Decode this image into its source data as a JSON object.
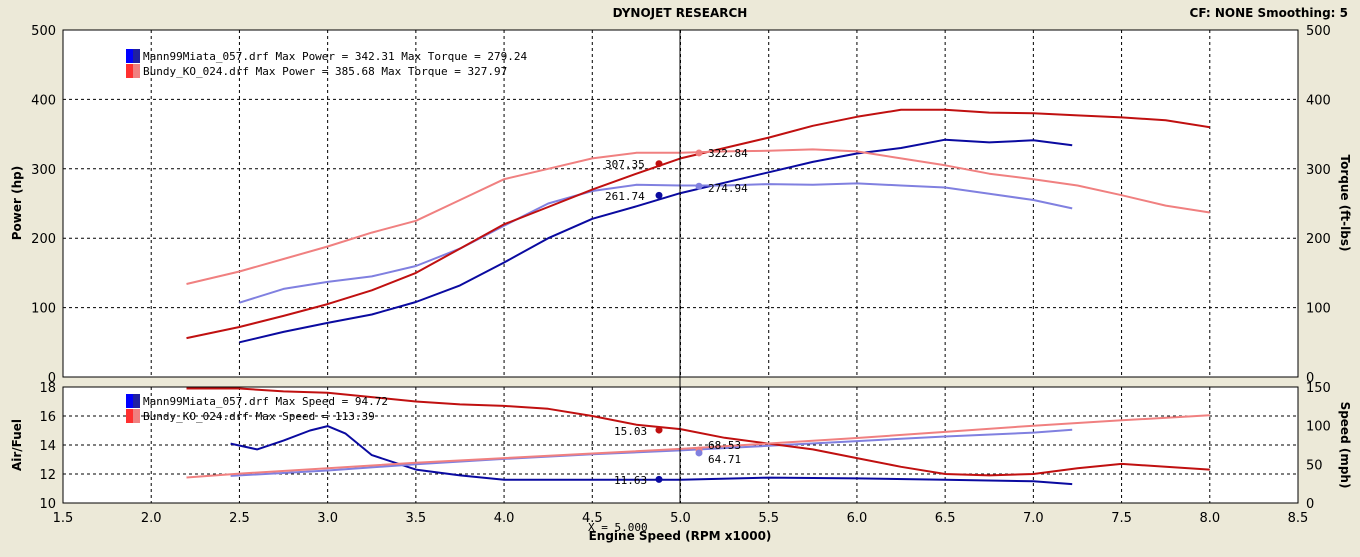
{
  "header": {
    "title": "DYNOJET RESEARCH",
    "settings": "CF: NONE  Smoothing: 5"
  },
  "x_axis": {
    "label": "Engine Speed (RPM x1000)",
    "ticks": [
      "1.5",
      "2.0",
      "2.5",
      "3.0",
      "3.5",
      "4.0",
      "4.5",
      "5.0",
      "5.5",
      "6.0",
      "6.5",
      "7.0",
      "7.5",
      "8.0",
      "8.5"
    ],
    "cursor_label": "X = 5.000"
  },
  "top_panel": {
    "left_label": "Power (hp)",
    "right_label": "Torque (ft-lbs)",
    "left_ticks": [
      "500",
      "400",
      "300",
      "200",
      "100",
      "0"
    ],
    "right_ticks": [
      "500",
      "400",
      "300",
      "200",
      "100",
      "0"
    ],
    "legend": [
      "Mann99Miata_057.drf Max Power = 342.31 Max Torque = 279.24",
      "Bundy_KO_024.drf Max Power = 385.68 Max Torque = 327.97"
    ],
    "readouts": [
      "307.35",
      "322.84",
      "261.74",
      "274.94"
    ]
  },
  "bottom_panel": {
    "left_label": "Air/Fuel",
    "right_label": "Speed (mph)",
    "left_ticks": [
      "18",
      "16",
      "14",
      "12",
      "10"
    ],
    "right_ticks": [
      "150",
      "100",
      "50",
      "0"
    ],
    "legend": [
      "Mann99Miata_057.drf Max Speed = 94.72",
      "Bundy_KO_024.drf Max Speed = 113.39"
    ],
    "readouts": [
      "15.03",
      "68.53",
      "64.71",
      "11.63"
    ]
  },
  "colors": {
    "background": "#ece9d8",
    "plot_bg": "#ffffff",
    "mann_power": "#0a0aa0",
    "mann_torque": "#8080e0",
    "bundy_power": "#c01010",
    "bundy_torque": "#f08080"
  },
  "chart_data": [
    {
      "type": "line",
      "xlabel": "Engine Speed (RPM x1000)",
      "ylabel": "Power (hp)",
      "y2label": "Torque (ft-lbs)",
      "xlim": [
        1.5,
        8.5
      ],
      "ylim": [
        0,
        500
      ],
      "y2lim": [
        0,
        500
      ],
      "cursor_x": 5.0,
      "series": [
        {
          "name": "Mann99Miata_057.drf",
          "measure": "power",
          "axis": "left",
          "color": "mann_power",
          "x": [
            2.5,
            2.75,
            3.0,
            3.25,
            3.5,
            3.75,
            4.0,
            4.25,
            4.5,
            4.75,
            5.0,
            5.25,
            5.5,
            5.75,
            6.0,
            6.25,
            6.5,
            6.75,
            7.0,
            7.22
          ],
          "y": [
            50,
            65,
            78,
            90,
            108,
            132,
            165,
            200,
            228,
            246,
            265,
            280,
            295,
            310,
            322,
            330,
            342,
            338,
            341,
            334
          ]
        },
        {
          "name": "Mann99Miata_057.drf",
          "measure": "torque",
          "axis": "right",
          "color": "mann_torque",
          "x": [
            2.5,
            2.75,
            3.0,
            3.25,
            3.5,
            3.75,
            4.0,
            4.25,
            4.5,
            4.75,
            5.0,
            5.25,
            5.5,
            5.75,
            6.0,
            6.25,
            6.5,
            6.75,
            7.0,
            7.22
          ],
          "y": [
            107,
            127,
            137,
            145,
            160,
            185,
            218,
            250,
            268,
            277,
            276,
            276,
            278,
            277,
            279,
            276,
            273,
            264,
            255,
            243
          ]
        },
        {
          "name": "Bundy_KO_024.drf",
          "measure": "power",
          "axis": "left",
          "color": "bundy_power",
          "x": [
            2.2,
            2.5,
            2.75,
            3.0,
            3.25,
            3.5,
            3.75,
            4.0,
            4.25,
            4.5,
            4.75,
            5.0,
            5.25,
            5.5,
            5.75,
            6.0,
            6.25,
            6.5,
            6.75,
            7.0,
            7.25,
            7.5,
            7.75,
            8.0
          ],
          "y": [
            56,
            72,
            88,
            105,
            125,
            150,
            185,
            220,
            245,
            270,
            293,
            315,
            330,
            345,
            362,
            375,
            385,
            385,
            381,
            380,
            377,
            374,
            370,
            360
          ]
        },
        {
          "name": "Bundy_KO_024.drf",
          "measure": "torque",
          "axis": "right",
          "color": "bundy_torque",
          "x": [
            2.2,
            2.5,
            2.75,
            3.0,
            3.25,
            3.5,
            3.75,
            4.0,
            4.25,
            4.5,
            4.75,
            5.0,
            5.25,
            5.5,
            5.75,
            6.0,
            6.25,
            6.5,
            6.75,
            7.0,
            7.25,
            7.5,
            7.75,
            8.0
          ],
          "y": [
            134,
            152,
            170,
            188,
            208,
            225,
            255,
            285,
            300,
            315,
            323,
            323,
            325,
            326,
            328,
            325,
            315,
            305,
            293,
            285,
            276,
            262,
            247,
            237
          ]
        }
      ],
      "summary": [
        {
          "name": "Mann99Miata_057.drf",
          "max_power": 342.31,
          "max_torque": 279.24,
          "power_at_cursor": 261.74,
          "torque_at_cursor": 274.94
        },
        {
          "name": "Bundy_KO_024.drf",
          "max_power": 385.68,
          "max_torque": 327.97,
          "power_at_cursor": 307.35,
          "torque_at_cursor": 322.84
        }
      ]
    },
    {
      "type": "line",
      "xlabel": "Engine Speed (RPM x1000)",
      "ylabel": "Air/Fuel",
      "y2label": "Speed (mph)",
      "xlim": [
        1.5,
        8.5
      ],
      "ylim": [
        10,
        18
      ],
      "y2lim": [
        0,
        150
      ],
      "cursor_x": 5.0,
      "series": [
        {
          "name": "Mann99Miata_057.drf",
          "measure": "air_fuel",
          "axis": "left",
          "color": "mann_power",
          "x": [
            2.45,
            2.6,
            2.75,
            2.9,
            3.0,
            3.1,
            3.25,
            3.5,
            3.75,
            4.0,
            4.5,
            5.0,
            5.5,
            6.0,
            6.5,
            7.0,
            7.22
          ],
          "y": [
            14.1,
            13.7,
            14.3,
            15.0,
            15.3,
            14.8,
            13.3,
            12.3,
            11.9,
            11.6,
            11.6,
            11.6,
            11.75,
            11.7,
            11.6,
            11.5,
            11.3
          ]
        },
        {
          "name": "Mann99Miata_057.drf",
          "measure": "speed",
          "axis": "right",
          "color": "mann_torque",
          "x": [
            2.45,
            3.0,
            3.5,
            4.0,
            4.5,
            5.0,
            5.5,
            6.0,
            6.5,
            7.0,
            7.22
          ],
          "y": [
            35,
            42,
            50,
            57,
            63,
            68,
            74,
            80,
            86,
            91,
            94.72
          ]
        },
        {
          "name": "Bundy_KO_024.drf",
          "measure": "air_fuel",
          "axis": "left",
          "color": "bundy_power",
          "x": [
            2.2,
            2.5,
            2.75,
            3.0,
            3.25,
            3.5,
            3.75,
            4.0,
            4.25,
            4.5,
            4.75,
            5.0,
            5.25,
            5.5,
            5.75,
            6.0,
            6.25,
            6.5,
            6.75,
            7.0,
            7.25,
            7.5,
            7.75,
            8.0
          ],
          "y": [
            17.9,
            17.9,
            17.7,
            17.6,
            17.3,
            17.0,
            16.8,
            16.7,
            16.5,
            16.0,
            15.4,
            15.1,
            14.5,
            14.1,
            13.7,
            13.1,
            12.5,
            12.0,
            11.9,
            12.0,
            12.4,
            12.7,
            12.5,
            12.3
          ]
        },
        {
          "name": "Bundy_KO_024.drf",
          "measure": "speed",
          "axis": "right",
          "color": "bundy_torque",
          "x": [
            2.2,
            2.5,
            3.0,
            3.5,
            4.0,
            4.5,
            5.0,
            5.5,
            6.0,
            6.5,
            7.0,
            7.5,
            8.0
          ],
          "y": [
            33,
            38,
            45,
            52,
            58,
            64,
            70,
            77,
            84,
            92,
            100,
            107,
            113.39
          ]
        }
      ],
      "summary": [
        {
          "name": "Mann99Miata_057.drf",
          "max_speed": 94.72,
          "speed_at_cursor": 64.71,
          "air_fuel_at_cursor": 11.63
        },
        {
          "name": "Bundy_KO_024.drf",
          "max_speed": 113.39,
          "speed_at_cursor": 68.53,
          "air_fuel_at_cursor": 15.03
        }
      ]
    }
  ]
}
